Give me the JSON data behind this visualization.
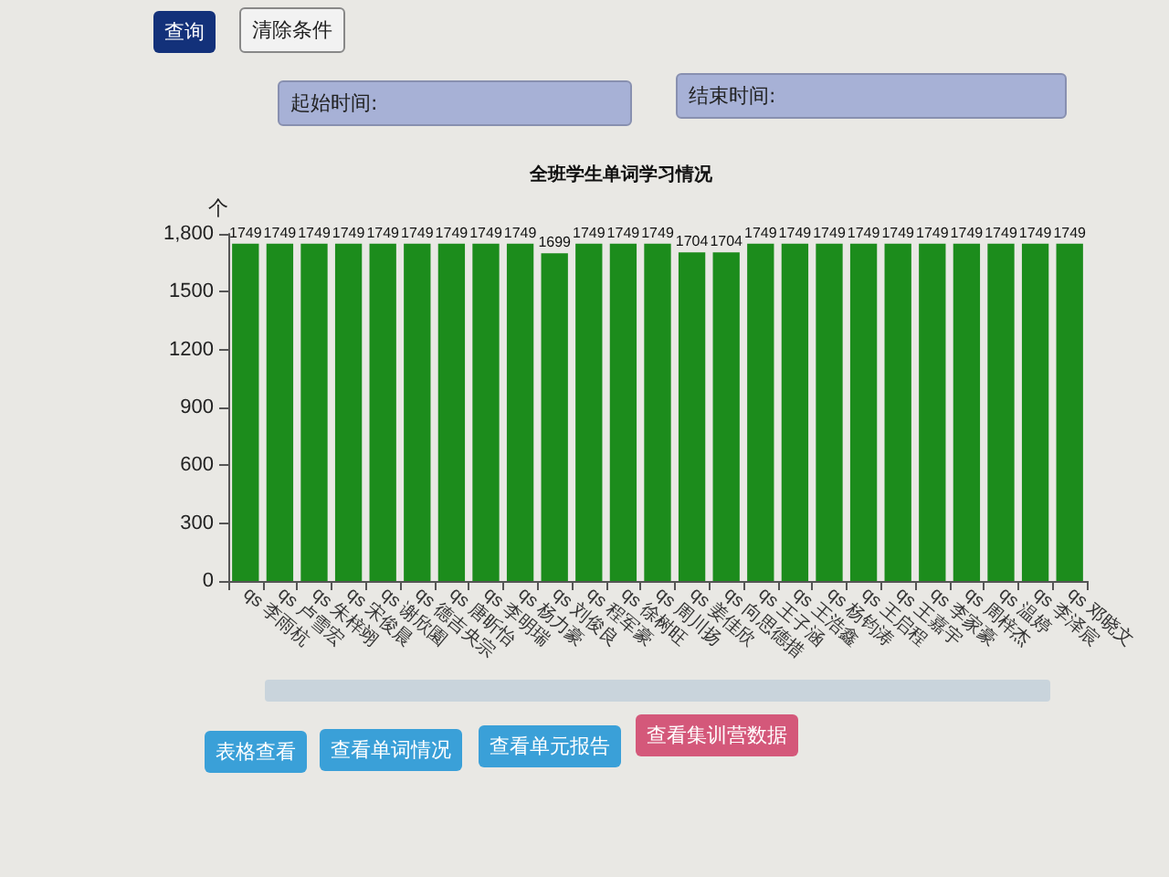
{
  "chart_data": {
    "type": "bar",
    "title": "全班学生单词学习情况",
    "ylabel": "个",
    "categories": [
      "qs 李雨杭",
      "qs 卢雪宏",
      "qs 朱梓翊",
      "qs 宋俊晨",
      "qs 谢欣園",
      "qs 德吉央宗",
      "qs 唐昕怡",
      "qs 李明瑞",
      "qs 杨力豪",
      "qs 刘俊良",
      "qs 程军豪",
      "qs 徐树旺",
      "qs 周川扬",
      "qs 姜佳欣",
      "qs 向思德措",
      "qs 王子涵",
      "qs 王浩鑫",
      "qs 杨钧涛",
      "qs 王启程",
      "qs 王嘉宇",
      "qs 李家豪",
      "qs 周梓杰",
      "qs 温婷",
      "qs 李泽宸",
      "qs 邓晓文"
    ],
    "values": [
      1749,
      1749,
      1749,
      1749,
      1749,
      1749,
      1749,
      1749,
      1749,
      1699,
      1749,
      1749,
      1749,
      1704,
      1704,
      1749,
      1749,
      1749,
      1749,
      1749,
      1749,
      1749,
      1749,
      1749,
      1749
    ],
    "color": "#1c8c1c",
    "data_labels": true,
    "grid": false,
    "ylim": [
      0,
      1800
    ],
    "yticks": [
      0,
      300,
      600,
      900,
      1200,
      1500,
      {
        "value": 1800,
        "label": "1,800"
      }
    ],
    "annotations": [
      "查询",
      "清除条件",
      "起始时间:",
      "结束时间:",
      "表格查看",
      "查看单词情况",
      "查看单元报告",
      "查看集训营数据"
    ]
  }
}
